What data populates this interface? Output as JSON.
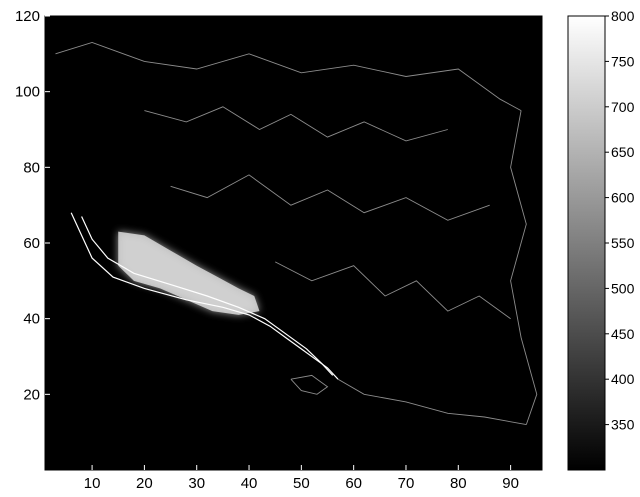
{
  "chart_data": {
    "type": "heatmap",
    "colormap": "gray",
    "background_color": "#000000",
    "xlim": [
      1,
      96
    ],
    "ylim": [
      0,
      120
    ],
    "xticks": [
      10,
      20,
      30,
      40,
      50,
      60,
      70,
      80,
      90
    ],
    "yticks": [
      20,
      40,
      60,
      80,
      100,
      120
    ],
    "colorbar": {
      "range": [
        300,
        800
      ],
      "ticks": [
        350,
        400,
        450,
        500,
        550,
        600,
        650,
        700,
        750,
        800
      ]
    },
    "regions": [
      {
        "description": "bright high-value band",
        "value_range": [
          650,
          800
        ],
        "polygon": [
          [
            15,
            63
          ],
          [
            20,
            62
          ],
          [
            25,
            58
          ],
          [
            30,
            54
          ],
          [
            34,
            51
          ],
          [
            38,
            48
          ],
          [
            41,
            46
          ],
          [
            42,
            42
          ],
          [
            38,
            41
          ],
          [
            33,
            42
          ],
          [
            28,
            45
          ],
          [
            23,
            48
          ],
          [
            18,
            50
          ],
          [
            15,
            54
          ]
        ]
      }
    ],
    "contour_outlines": [
      {
        "name": "coast",
        "points": [
          [
            6,
            68
          ],
          [
            8,
            62
          ],
          [
            10,
            56
          ],
          [
            14,
            51
          ],
          [
            20,
            48
          ],
          [
            28,
            45
          ],
          [
            35,
            43
          ],
          [
            40,
            41
          ],
          [
            44,
            38
          ],
          [
            47,
            35
          ],
          [
            50,
            32
          ],
          [
            53,
            29
          ],
          [
            55,
            27
          ],
          [
            57,
            24
          ]
        ]
      },
      {
        "name": "inner-coast",
        "points": [
          [
            8,
            67
          ],
          [
            10,
            61
          ],
          [
            13,
            56
          ],
          [
            18,
            52
          ],
          [
            25,
            49
          ],
          [
            32,
            46
          ],
          [
            38,
            43
          ],
          [
            43,
            40
          ],
          [
            47,
            36
          ],
          [
            51,
            32
          ],
          [
            54,
            28
          ],
          [
            56,
            25
          ]
        ]
      },
      {
        "name": "north-border",
        "points": [
          [
            3,
            110
          ],
          [
            10,
            113
          ],
          [
            20,
            108
          ],
          [
            30,
            106
          ],
          [
            40,
            110
          ],
          [
            50,
            105
          ],
          [
            60,
            107
          ],
          [
            70,
            104
          ],
          [
            80,
            106
          ],
          [
            88,
            98
          ],
          [
            92,
            95
          ]
        ]
      },
      {
        "name": "east-border",
        "points": [
          [
            92,
            95
          ],
          [
            90,
            80
          ],
          [
            93,
            65
          ],
          [
            90,
            50
          ],
          [
            92,
            35
          ],
          [
            95,
            20
          ],
          [
            93,
            12
          ]
        ]
      },
      {
        "name": "south-border",
        "points": [
          [
            57,
            24
          ],
          [
            62,
            20
          ],
          [
            70,
            18
          ],
          [
            78,
            15
          ],
          [
            85,
            14
          ],
          [
            93,
            12
          ]
        ]
      },
      {
        "name": "interior-1",
        "points": [
          [
            20,
            95
          ],
          [
            28,
            92
          ],
          [
            35,
            96
          ],
          [
            42,
            90
          ],
          [
            48,
            94
          ],
          [
            55,
            88
          ],
          [
            62,
            92
          ],
          [
            70,
            87
          ],
          [
            78,
            90
          ]
        ]
      },
      {
        "name": "interior-2",
        "points": [
          [
            25,
            75
          ],
          [
            32,
            72
          ],
          [
            40,
            78
          ],
          [
            48,
            70
          ],
          [
            55,
            74
          ],
          [
            62,
            68
          ],
          [
            70,
            72
          ],
          [
            78,
            66
          ],
          [
            86,
            70
          ]
        ]
      },
      {
        "name": "interior-3",
        "points": [
          [
            45,
            55
          ],
          [
            52,
            50
          ],
          [
            60,
            54
          ],
          [
            66,
            46
          ],
          [
            72,
            50
          ],
          [
            78,
            42
          ],
          [
            84,
            46
          ],
          [
            90,
            40
          ]
        ]
      },
      {
        "name": "island",
        "points": [
          [
            48,
            24
          ],
          [
            50,
            21
          ],
          [
            53,
            20
          ],
          [
            55,
            22
          ],
          [
            52,
            25
          ],
          [
            48,
            24
          ]
        ]
      }
    ]
  }
}
